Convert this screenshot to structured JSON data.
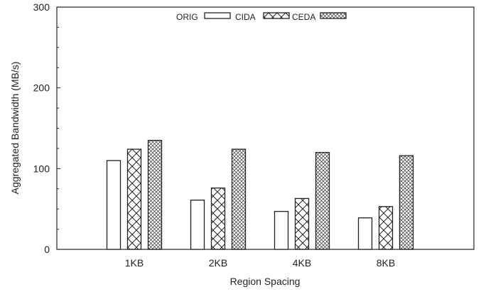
{
  "chart_data": {
    "type": "bar",
    "title": "",
    "xlabel": "Region Spacing",
    "ylabel": "Aggregated Bandwidth (MB/s)",
    "categories": [
      "1KB",
      "2KB",
      "4KB",
      "8KB"
    ],
    "ylim": [
      0,
      300
    ],
    "yticks": [
      0,
      100,
      200,
      300
    ],
    "grid": false,
    "legend_position": "top",
    "series": [
      {
        "name": "ORIG",
        "pattern": "plain",
        "values": [
          110,
          61,
          47,
          39
        ]
      },
      {
        "name": "CIDA",
        "pattern": "cross-hatch",
        "values": [
          124,
          76,
          63,
          53
        ]
      },
      {
        "name": "CEDA",
        "pattern": "fine-cross-hatch",
        "values": [
          135,
          124,
          120,
          116
        ]
      }
    ]
  }
}
